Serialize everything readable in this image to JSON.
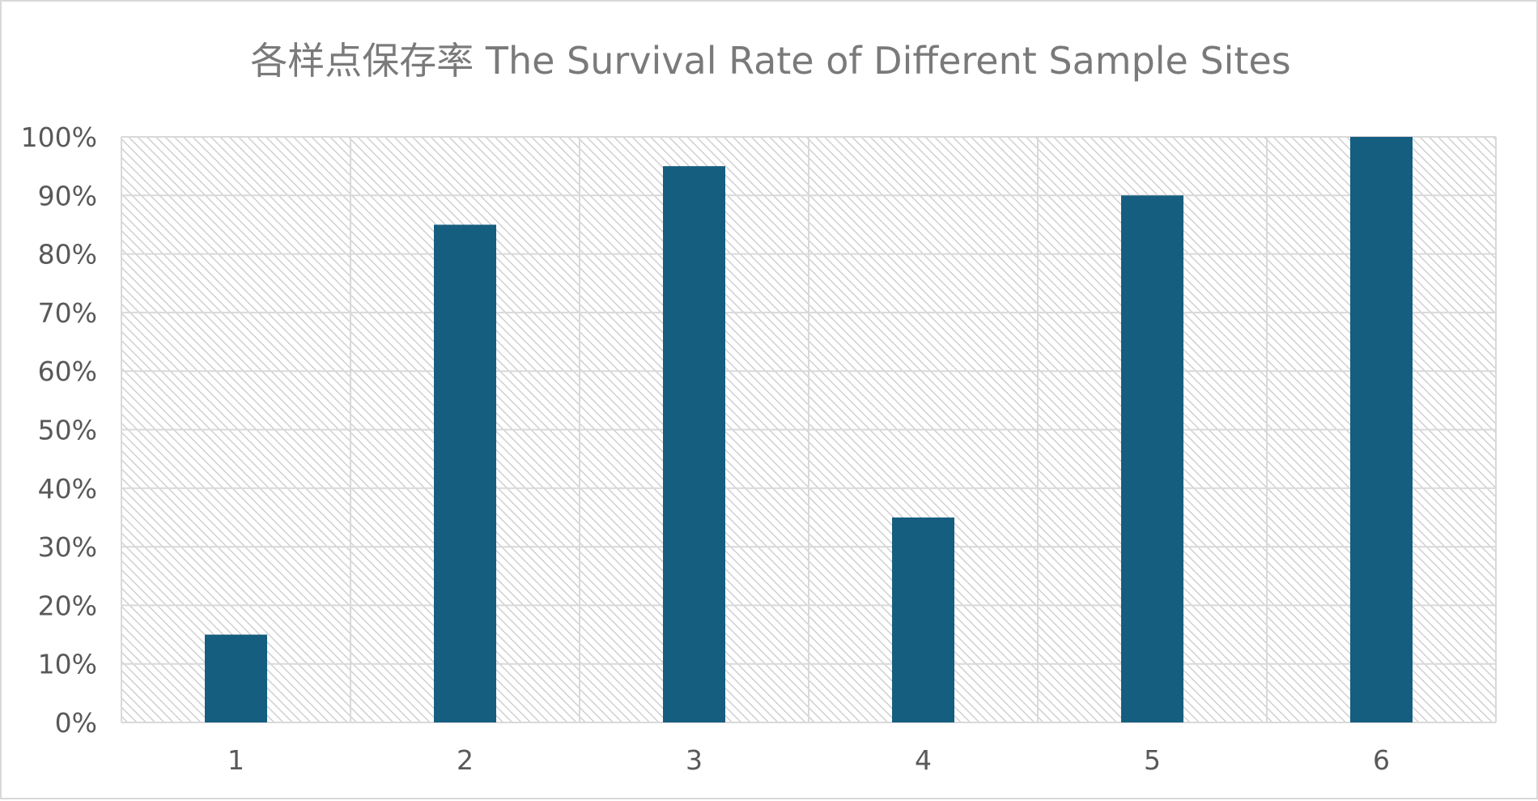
{
  "chart_data": {
    "type": "bar",
    "title": "各样点保存率 The Survival Rate of Different Sample Sites",
    "xlabel": "",
    "ylabel": "",
    "categories": [
      "1",
      "2",
      "3",
      "4",
      "5",
      "6"
    ],
    "values": [
      15,
      85,
      95,
      35,
      90,
      100
    ],
    "value_unit": "%",
    "ylim": [
      0,
      100
    ],
    "y_ticks": [
      "0%",
      "10%",
      "20%",
      "30%",
      "40%",
      "50%",
      "60%",
      "70%",
      "80%",
      "90%",
      "100%"
    ],
    "grid": {
      "horizontal": true,
      "vertical": true
    },
    "plot_background": "diagonal-hatch",
    "legend": "none",
    "colors": {
      "bar": "#165e80",
      "grid": "#d9d9d9",
      "hatch": "#d0d0d0",
      "title": "#7a7a7a",
      "tick_label": "#595959"
    }
  }
}
